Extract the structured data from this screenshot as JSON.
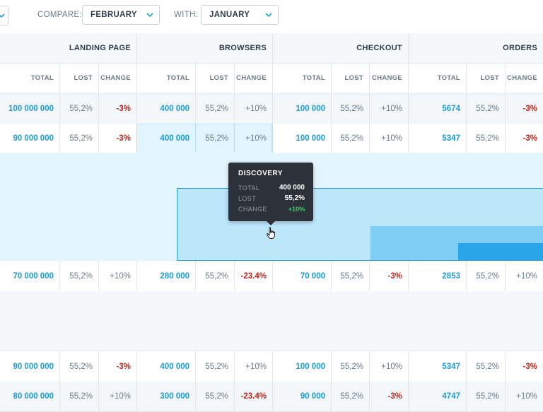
{
  "filters": {
    "compare_label": "COMPARE:",
    "compare_value": "FEBRUARY",
    "with_label": "WITH:",
    "with_value": "JANUARY"
  },
  "groups": [
    "LANDING PAGE",
    "BROWSERS",
    "CHECKOUT",
    "ORDERS"
  ],
  "subheaders": [
    "TOTAL",
    "LOST",
    "CHANGE"
  ],
  "rows": [
    [
      [
        "100 000 000",
        "55,2%",
        "-3%"
      ],
      [
        "400 000",
        "55,2%",
        "+10%"
      ],
      [
        "100 000",
        "55,2%",
        "+10%"
      ],
      [
        "5674",
        "55,2%",
        "-3%"
      ]
    ],
    [
      [
        "90 000 000",
        "55,2%",
        "-3%"
      ],
      [
        "400 000",
        "55,2%",
        "+10%"
      ],
      [
        "100 000",
        "55,2%",
        "+10%"
      ],
      [
        "5347",
        "55,2%",
        "-3%"
      ]
    ],
    [
      [
        "70 000 000",
        "55,2%",
        "+10%"
      ],
      [
        "280 000",
        "55,2%",
        "-23.4%"
      ],
      [
        "70 000",
        "55,2%",
        "-3%"
      ],
      [
        "2853",
        "55,2%",
        "+10%"
      ]
    ],
    [
      [
        "90 000 000",
        "55,2%",
        "-3%"
      ],
      [
        "400 000",
        "55,2%",
        "+10%"
      ],
      [
        "100 000",
        "55,2%",
        "+10%"
      ],
      [
        "5347",
        "55,2%",
        "-3%"
      ]
    ],
    [
      [
        "80 000 000",
        "55,2%",
        "+10%"
      ],
      [
        "300 000",
        "55,2%",
        "-23.4%"
      ],
      [
        "90 000",
        "55,2%",
        "-3%"
      ],
      [
        "4747",
        "55,2%",
        "+10%"
      ]
    ]
  ],
  "tooltip": {
    "title": "DISCOVERY",
    "total_label": "TOTAL",
    "total_value": "400 000",
    "lost_label": "LOST",
    "lost_value": "55,2%",
    "change_label": "CHANGE",
    "change_value": "+10%"
  },
  "colors": {
    "accent": "#1f9bd6",
    "negative": "#c0241b",
    "positive": "#3ad16b",
    "highlight": "#e2f4fd"
  }
}
